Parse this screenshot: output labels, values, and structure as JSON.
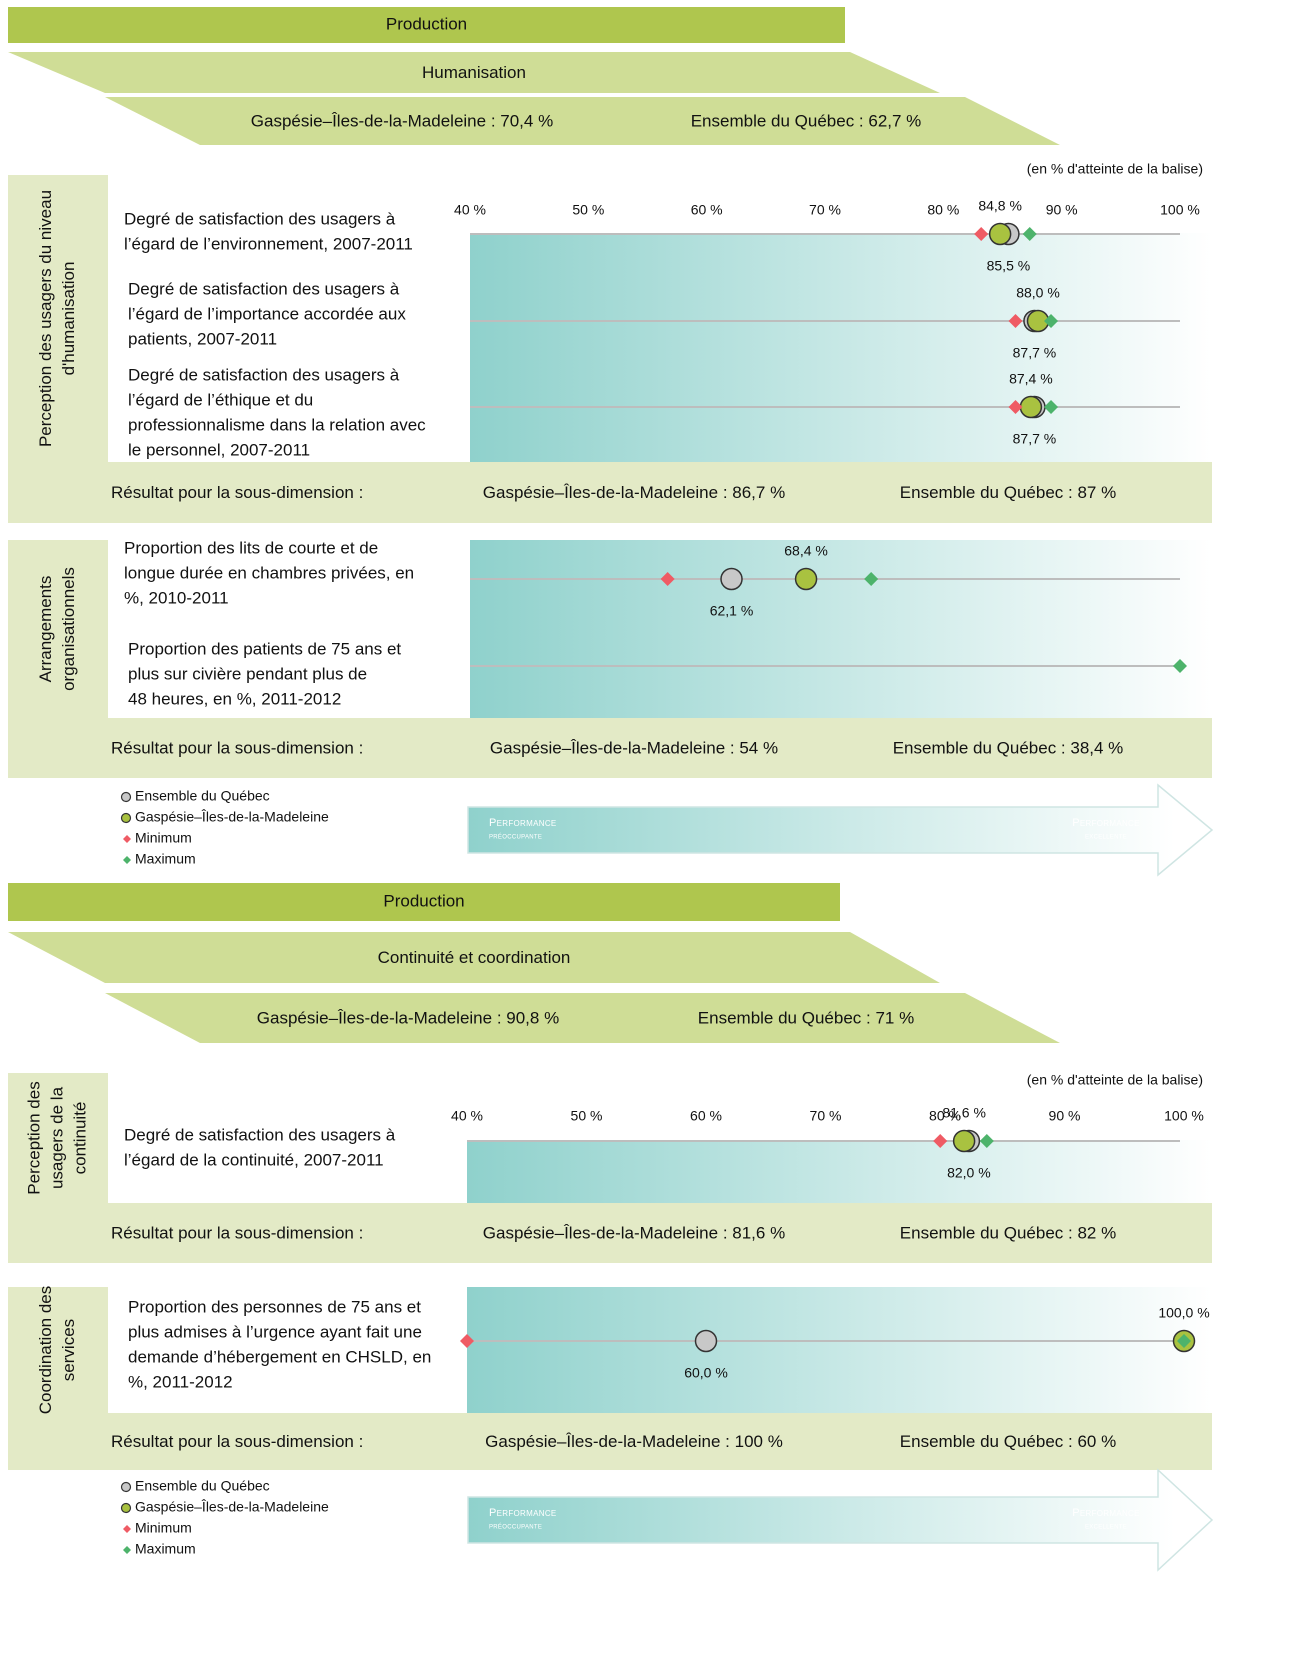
{
  "panels": [
    {
      "header": "Production",
      "dimension": "Humanisation",
      "summary": [
        "Gaspésie–Îles-de-la-Madeleine : 70,4 %",
        "Ensemble du Québec : 62,7 %"
      ],
      "axis_note": "(en % d'atteinte de la balise)",
      "xlim": [
        40,
        100
      ],
      "xticks": [
        {
          "value": 40,
          "label": "40 %"
        },
        {
          "value": 50,
          "label": "50 %"
        },
        {
          "value": 60,
          "label": "60 %"
        },
        {
          "value": 70,
          "label": "70 %"
        },
        {
          "value": 80,
          "label": "80 %"
        },
        {
          "value": 90,
          "label": "90 %"
        },
        {
          "value": 100,
          "label": "100 %"
        }
      ],
      "groups": [
        {
          "label": [
            "Perception des usagers du niveau",
            "d'humanisation"
          ],
          "indicators": [
            {
              "label": [
                "Degré de satisfaction des usagers à",
                "l’égard de l’environnement, 2007-2011"
              ],
              "quebec": 85.5,
              "quebec_label": "85,5 %",
              "region": 84.8,
              "region_label": "84,8 %",
              "min": 83.2,
              "max": 87.3
            },
            {
              "label": [
                "Degré de satisfaction des usagers à",
                "l’égard de l’importance accordée aux",
                "patients, 2007-2011"
              ],
              "quebec": 87.7,
              "quebec_label": "87,7 %",
              "region": 88.0,
              "region_label": "88,0 %",
              "min": 86.1,
              "max": 89.1
            },
            {
              "label": [
                "Degré de satisfaction des usagers à",
                "l’égard de l’éthique et du",
                "professionnalisme dans la relation avec",
                "le personnel, 2007-2011"
              ],
              "quebec": 87.7,
              "quebec_label": "87,7 %",
              "region": 87.4,
              "region_label": "87,4 %",
              "min": 86.1,
              "max": 89.1
            }
          ],
          "result": [
            "Résultat pour la sous-dimension :",
            "Gaspésie–Îles-de-la-Madeleine : 86,7 %",
            "Ensemble du Québec : 87 %"
          ]
        },
        {
          "label": [
            "Arrangements",
            "organisationnels"
          ],
          "indicators": [
            {
              "label": [
                "Proportion des lits de courte et de",
                "longue durée en chambres privées, en",
                "%, 2010-2011"
              ],
              "quebec": 62.1,
              "quebec_label": "62,1 %",
              "region": 68.4,
              "region_label": "68,4 %",
              "min": 56.7,
              "max": 73.9
            },
            {
              "label": [
                "Proportion des patients de 75 ans et",
                "plus sur civière pendant plus de",
                "48 heures, en %, 2011-2012"
              ],
              "quebec": null,
              "quebec_label": null,
              "region": null,
              "region_label": null,
              "min": null,
              "max": 100
            }
          ],
          "result": [
            "Résultat pour la sous-dimension :",
            "Gaspésie–Îles-de-la-Madeleine : 54 %",
            "Ensemble du Québec : 38,4 %"
          ]
        }
      ],
      "legend": [
        "Ensemble du Québec",
        "Gaspésie–Îles-de-la-Madeleine",
        "Minimum",
        "Maximum"
      ],
      "arrow": [
        "Performance",
        "préoccupante",
        "Performance",
        "excellente"
      ]
    },
    {
      "header": "Production",
      "dimension": "Continuité et coordination",
      "summary": [
        "Gaspésie–Îles-de-la-Madeleine : 90,8 %",
        "Ensemble du Québec : 71 %"
      ],
      "axis_note": "(en % d'atteinte de la balise)",
      "xlim": [
        40,
        100
      ],
      "xticks": [
        {
          "value": 40,
          "label": "40 %"
        },
        {
          "value": 50,
          "label": "50 %"
        },
        {
          "value": 60,
          "label": "60 %"
        },
        {
          "value": 70,
          "label": "70 %"
        },
        {
          "value": 80,
          "label": "80 %"
        },
        {
          "value": 90,
          "label": "90 %"
        },
        {
          "value": 100,
          "label": "100 %"
        }
      ],
      "groups": [
        {
          "label": [
            "Perception des",
            "usagers de la",
            "continuité"
          ],
          "indicators": [
            {
              "label": [
                "Degré de satisfaction des usagers à",
                "l’égard de la continuité, 2007-2011"
              ],
              "quebec": 82.0,
              "quebec_label": "82,0 %",
              "region": 81.6,
              "region_label": "81,6 %",
              "min": 79.6,
              "max": 83.5
            }
          ],
          "result": [
            "Résultat pour la sous-dimension :",
            "Gaspésie–Îles-de-la-Madeleine : 81,6 %",
            "Ensemble du Québec : 82 %"
          ]
        },
        {
          "label": [
            "Coordination des",
            "services"
          ],
          "indicators": [
            {
              "label": [
                "Proportion des personnes de 75 ans et",
                "plus admises à l’urgence ayant fait une",
                "demande d’hébergement en CHSLD, en",
                "%, 2011-2012"
              ],
              "quebec": 60.0,
              "quebec_label": "60,0 %",
              "region": 100.0,
              "region_label": "100,0 %",
              "min": 40,
              "max": 100
            }
          ],
          "result": [
            "Résultat pour la sous-dimension :",
            "Gaspésie–Îles-de-la-Madeleine : 100 %",
            "Ensemble du Québec : 60 %"
          ]
        }
      ],
      "legend": [
        "Ensemble du Québec",
        "Gaspésie–Îles-de-la-Madeleine",
        "Minimum",
        "Maximum"
      ],
      "arrow": [
        "Performance",
        "préoccupante",
        "Performance",
        "excellente"
      ]
    }
  ],
  "colors": {
    "quebec": "#c8c8c8",
    "region": "#a9c240",
    "min": "#ef5b64",
    "max": "#4db36b"
  }
}
